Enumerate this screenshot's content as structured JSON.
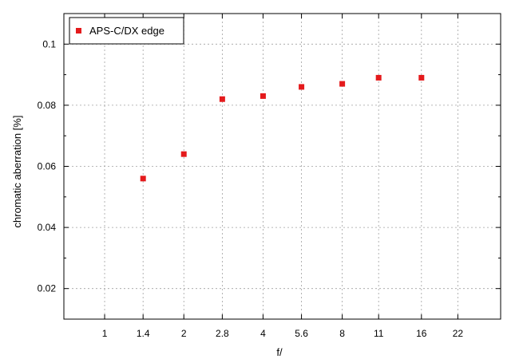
{
  "chart_data": {
    "type": "scatter",
    "xlabel": "f/",
    "ylabel": "chromatic aberration [%]",
    "x_scale": "log2",
    "xlim": [
      0.7,
      32
    ],
    "ylim": [
      0.01,
      0.11
    ],
    "x_ticks": [
      1,
      1.4,
      2,
      2.8,
      4,
      5.6,
      8,
      11,
      16,
      22
    ],
    "x_tick_labels": [
      "1",
      "1.4",
      "2",
      "2.8",
      "4",
      "5.6",
      "8",
      "11",
      "16",
      "22"
    ],
    "y_ticks": [
      0.02,
      0.04,
      0.06,
      0.08,
      0.1
    ],
    "y_tick_labels": [
      "0.02",
      "0.04",
      "0.06",
      "0.08",
      "0.1"
    ],
    "grid": true,
    "legend_position": "top-left",
    "series": [
      {
        "name": "APS-C/DX edge",
        "color": "#e41a1c",
        "marker": "square",
        "x": [
          1.4,
          2,
          2.8,
          4,
          5.6,
          8,
          11,
          16
        ],
        "y": [
          0.056,
          0.064,
          0.082,
          0.083,
          0.086,
          0.087,
          0.089,
          0.089
        ]
      }
    ]
  }
}
